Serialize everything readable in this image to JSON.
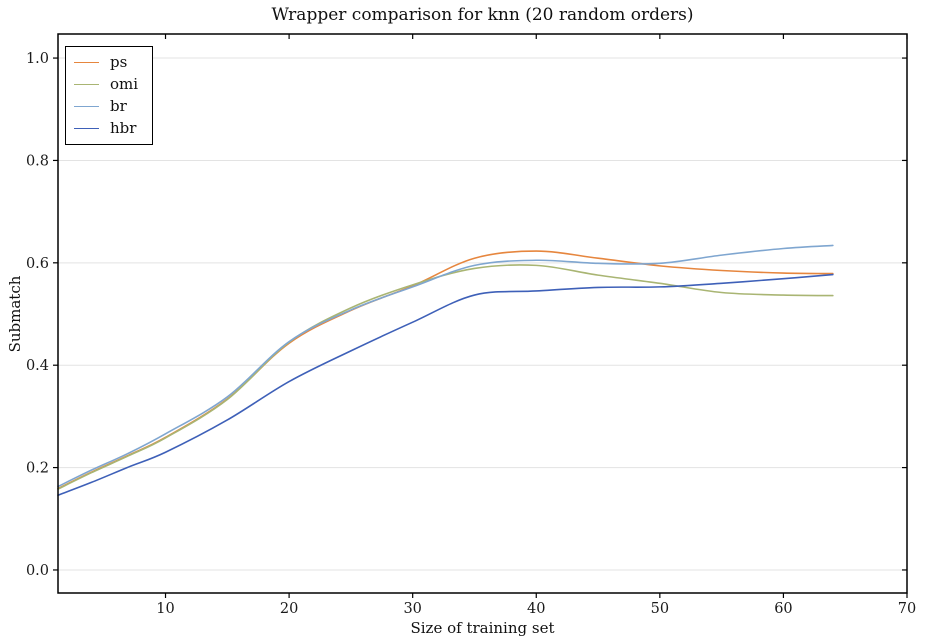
{
  "title": "Wrapper comparison for knn (20 random orders)",
  "chart_data": {
    "type": "line",
    "title": "Wrapper comparison for knn (20 random orders)",
    "xlabel": "Size of training set",
    "ylabel": "Submatch",
    "xlim": [
      1.3,
      70
    ],
    "ylim": [
      -0.045,
      1.047
    ],
    "xticks": [
      "10",
      "20",
      "30",
      "40",
      "50",
      "60",
      "70"
    ],
    "xtick_values": [
      10,
      20,
      30,
      40,
      50,
      60,
      70
    ],
    "ytick_labels": [
      "0.0",
      "0.2",
      "0.4",
      "0.6",
      "0.8",
      "1.0"
    ],
    "ytick_values": [
      0.0,
      0.2,
      0.4,
      0.6,
      0.8,
      1.0
    ],
    "grid": "horizontal",
    "grid_color": "#e3e3e3",
    "axis_color": "#000000",
    "legend_position": "upper left",
    "x": [
      1.3,
      4,
      7,
      10,
      15,
      20,
      25,
      30,
      35,
      40,
      45,
      50,
      55,
      60,
      64
    ],
    "series": [
      {
        "name": "ps",
        "color": "#e6863e",
        "values": [
          0.159,
          0.191,
          0.224,
          0.259,
          0.334,
          0.443,
          0.507,
          0.555,
          0.609,
          0.623,
          0.609,
          0.594,
          0.585,
          0.58,
          0.579
        ]
      },
      {
        "name": "omi",
        "color": "#a9b573",
        "values": [
          0.158,
          0.19,
          0.223,
          0.258,
          0.333,
          0.445,
          0.512,
          0.557,
          0.589,
          0.595,
          0.576,
          0.56,
          0.542,
          0.537,
          0.536
        ]
      },
      {
        "name": "br",
        "color": "#7fa6d0",
        "values": [
          0.163,
          0.195,
          0.228,
          0.266,
          0.338,
          0.446,
          0.508,
          0.553,
          0.595,
          0.605,
          0.599,
          0.599,
          0.615,
          0.628,
          0.634
        ]
      },
      {
        "name": "hbr",
        "color": "#3e60b8",
        "values": [
          0.146,
          0.171,
          0.201,
          0.23,
          0.293,
          0.368,
          0.428,
          0.484,
          0.537,
          0.545,
          0.552,
          0.553,
          0.56,
          0.569,
          0.577
        ]
      }
    ]
  }
}
